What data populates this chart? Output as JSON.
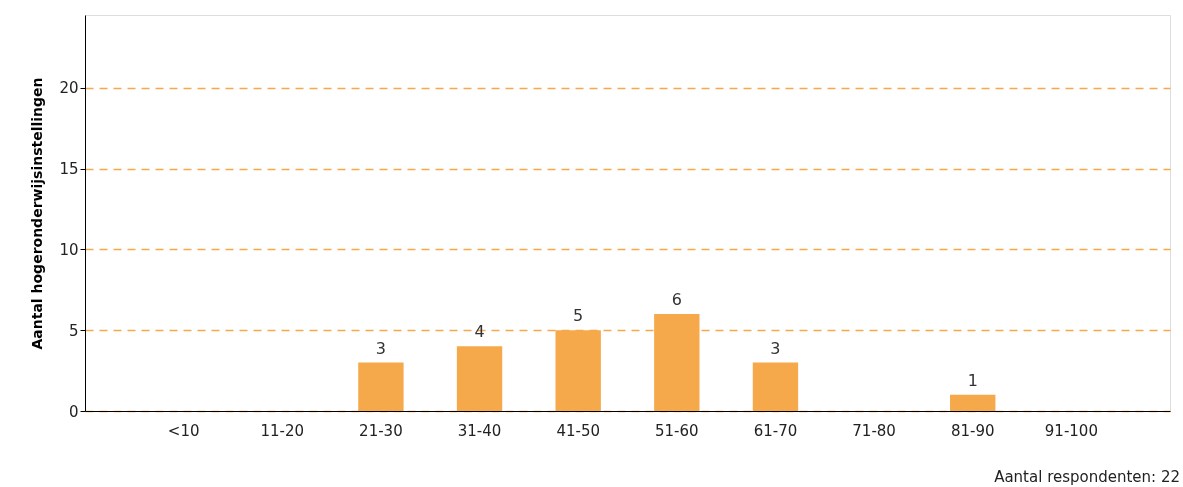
{
  "chart_data": {
    "type": "bar",
    "ylabel": "Aantal hogeronderwijsinstellingen",
    "categories": [
      "<10",
      "11-20",
      "21-30",
      "31-40",
      "41-50",
      "51-60",
      "61-70",
      "71-80",
      "81-90",
      "91-100"
    ],
    "values": [
      0,
      0,
      3,
      4,
      5,
      6,
      3,
      0,
      1,
      0
    ],
    "value_labels": [
      null,
      null,
      "3",
      "4",
      "5",
      "6",
      "3",
      null,
      "1",
      null
    ],
    "color": "#f5a94a",
    "ylim": [
      0,
      24.5
    ],
    "yticks": [
      0,
      5,
      10,
      15,
      20
    ],
    "grid": "y",
    "annotations": [
      "Aantal respondenten: 22"
    ]
  }
}
